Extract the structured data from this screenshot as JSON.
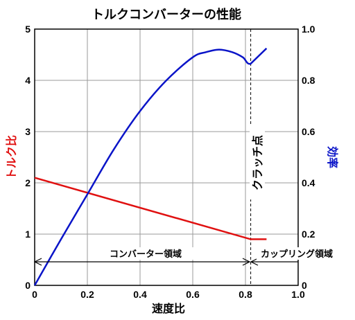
{
  "chart_data": {
    "type": "line",
    "title": "トルクコンバーターの性能",
    "xlabel": "速度比",
    "ylabel_left": "トルク比",
    "ylabel_right": "効率",
    "xlim": [
      0,
      1.0
    ],
    "ylim_left": [
      0,
      5
    ],
    "ylim_right": [
      0,
      1.0
    ],
    "x_ticks": [
      "0",
      "0.2",
      "0.4",
      "0.6",
      "0.8",
      "1.0"
    ],
    "y_left_ticks": [
      "0",
      "1",
      "2",
      "3",
      "4",
      "5"
    ],
    "y_right_ticks": [
      "0",
      "0.2",
      "0.4",
      "0.6",
      "0.8",
      "1.0"
    ],
    "grid": true,
    "colors": {
      "torque": "#e01010",
      "efficiency": "#0a14c8"
    },
    "series": [
      {
        "axis": "left",
        "color": "#e01010",
        "x": [
          0,
          0.82,
          0.88
        ],
        "y": [
          2.1,
          0.9,
          0.9
        ]
      },
      {
        "axis": "right",
        "color": "#0a14c8",
        "x": [
          0,
          0.1,
          0.2,
          0.3,
          0.4,
          0.5,
          0.6,
          0.65,
          0.7,
          0.75,
          0.79,
          0.82,
          0.88
        ],
        "y": [
          0,
          0.18,
          0.355,
          0.53,
          0.68,
          0.8,
          0.89,
          0.91,
          0.92,
          0.91,
          0.89,
          0.865,
          0.925
        ]
      }
    ],
    "annotations": {
      "clutch_point": {
        "x": 0.82,
        "label": "クラッチ点"
      },
      "converter_region": "コンバーター領域",
      "coupling_region": "カップリング領域"
    }
  }
}
